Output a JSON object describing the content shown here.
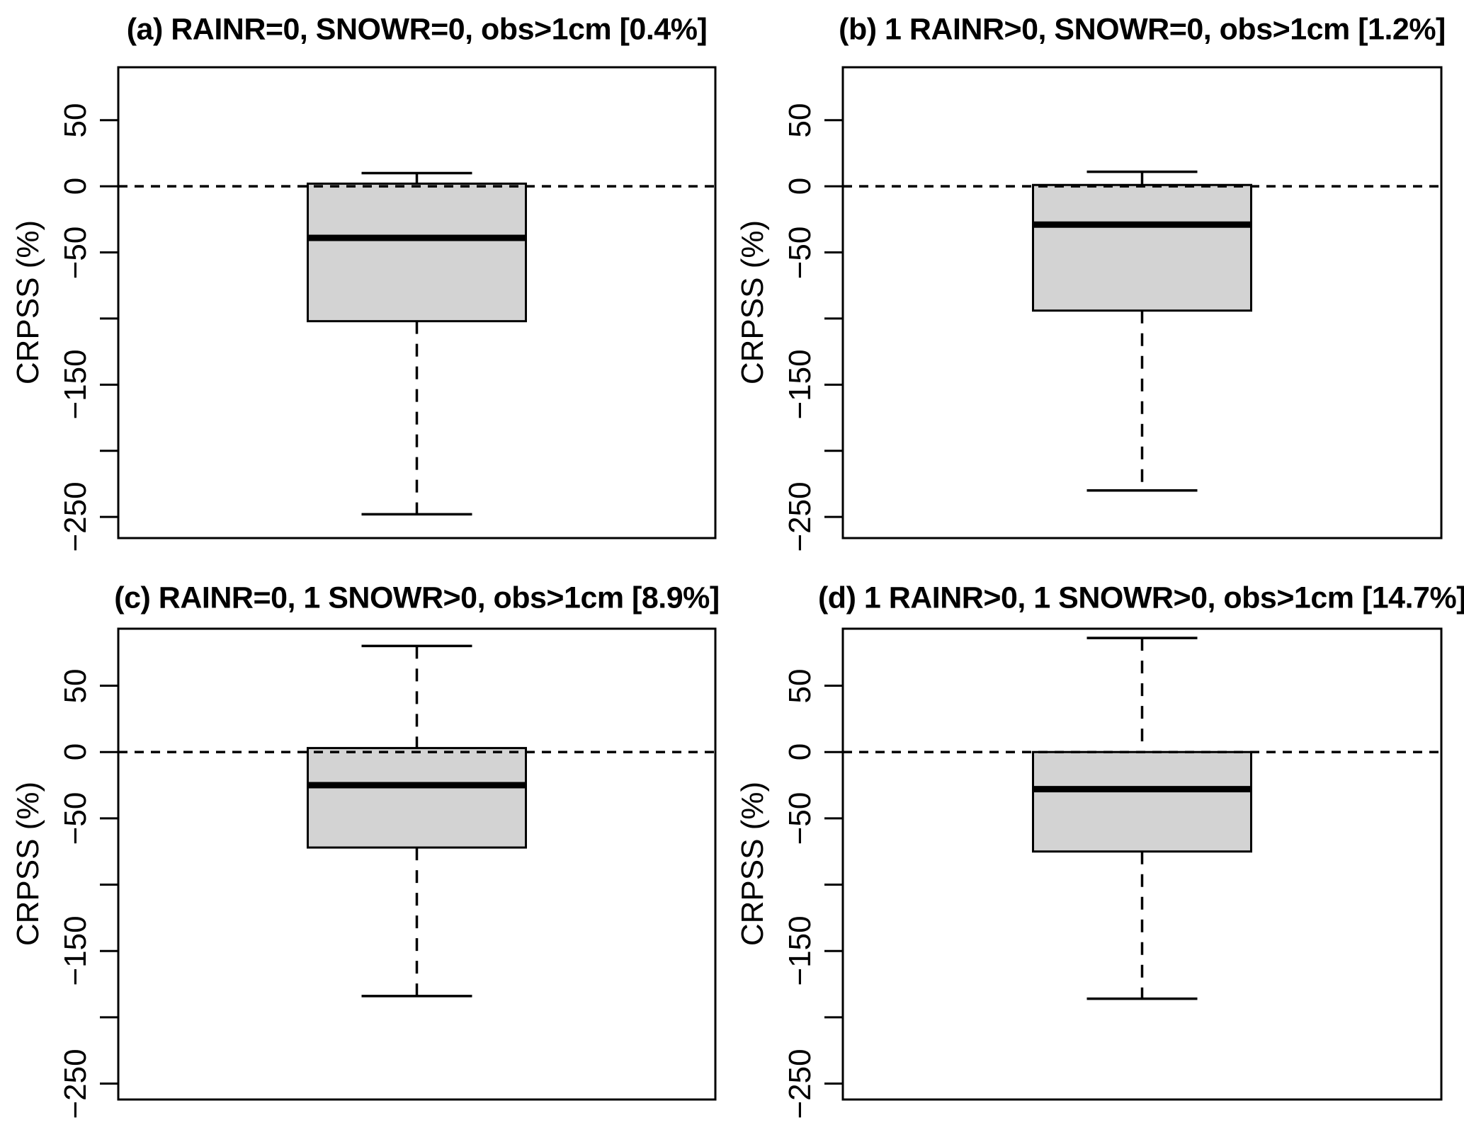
{
  "figure": {
    "background": "#ffffff"
  },
  "chart_data": {
    "type": "boxplot",
    "ylabel": "CRPSS (%)",
    "grid": "off",
    "y_axis": {
      "ticks": [
        {
          "value": 50,
          "label": "50"
        },
        {
          "value": 0,
          "label": "0"
        },
        {
          "value": -50,
          "label": "−50"
        },
        {
          "value": -100,
          "label": ""
        },
        {
          "value": -150,
          "label": "−150"
        },
        {
          "value": -200,
          "label": ""
        },
        {
          "value": -250,
          "label": "−250"
        }
      ],
      "zero_reference_line": 0
    },
    "panels": [
      {
        "id": "a",
        "title": "(a) RAINR=0, SNOWR=0, obs>1cm [0.4%]",
        "row": 0,
        "col": 0,
        "ylim": [
          -266,
          90
        ],
        "box": {
          "whisker_low": -248,
          "q1": -102,
          "median": -39,
          "q3": 2,
          "whisker_high": 10
        }
      },
      {
        "id": "b",
        "title": "(b) 1 RAINR>0, SNOWR=0, obs>1cm [1.2%]",
        "row": 0,
        "col": 1,
        "ylim": [
          -266,
          90
        ],
        "box": {
          "whisker_low": -230,
          "q1": -94,
          "median": -29,
          "q3": 1,
          "whisker_high": 11
        }
      },
      {
        "id": "c",
        "title": "(c) RAINR=0, 1 SNOWR>0, obs>1cm [8.9%]",
        "row": 1,
        "col": 0,
        "ylim": [
          -262,
          93
        ],
        "box": {
          "whisker_low": -184,
          "q1": -72,
          "median": -25,
          "q3": 3,
          "whisker_high": 80
        }
      },
      {
        "id": "d",
        "title": "(d) 1 RAINR>0, 1 SNOWR>0, obs>1cm [14.7%]",
        "row": 1,
        "col": 1,
        "ylim": [
          -262,
          93
        ],
        "box": {
          "whisker_low": -186,
          "q1": -75,
          "median": -28,
          "q3": 0,
          "whisker_high": 86
        }
      }
    ],
    "colors": {
      "box_fill": "#d3d3d3",
      "line": "#000000",
      "median": "#000000",
      "background": "#ffffff"
    }
  }
}
